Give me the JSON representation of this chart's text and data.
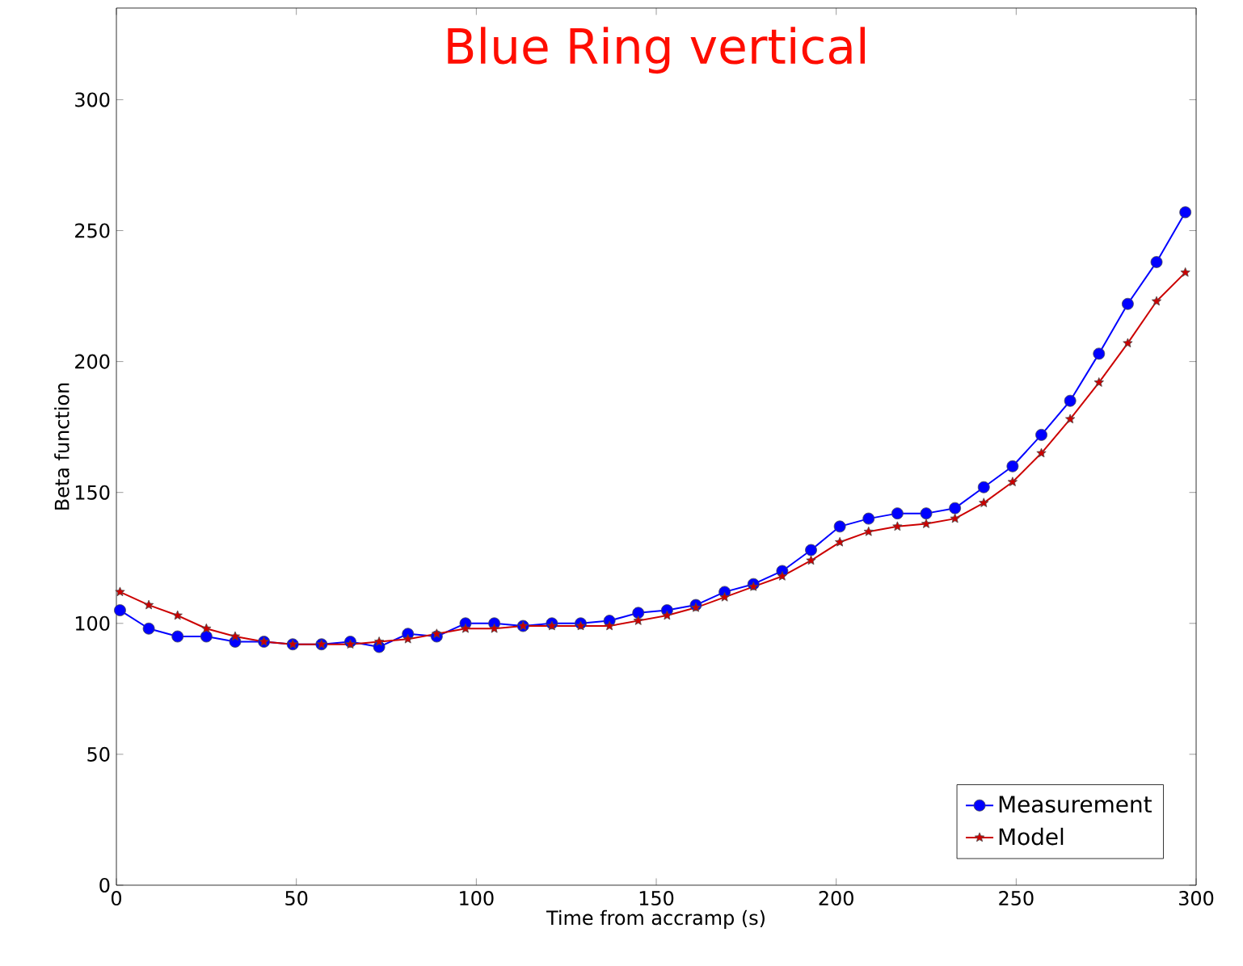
{
  "chart_data": {
    "type": "line",
    "title": "Blue Ring vertical",
    "xlabel": "Time from accramp (s)",
    "ylabel": "Beta function",
    "x": [
      1,
      9,
      17,
      25,
      33,
      41,
      49,
      57,
      65,
      73,
      81,
      89,
      97,
      105,
      113,
      121,
      129,
      137,
      145,
      153,
      161,
      169,
      177,
      185,
      193,
      201,
      209,
      217,
      225,
      233,
      241,
      249,
      257,
      265,
      273,
      281,
      289,
      297
    ],
    "series": [
      {
        "name": "Measurement",
        "color": "#0000ff",
        "marker": "circle",
        "values": [
          105,
          98,
          95,
          95,
          93,
          93,
          92,
          92,
          93,
          91,
          96,
          95,
          100,
          100,
          99,
          100,
          100,
          101,
          104,
          105,
          107,
          112,
          115,
          120,
          128,
          137,
          140,
          142,
          142,
          144,
          152,
          160,
          172,
          185,
          203,
          222,
          238,
          257
        ]
      },
      {
        "name": "Model",
        "color": "#cc0000",
        "marker": "star",
        "values": [
          112,
          107,
          103,
          98,
          95,
          93,
          92,
          92,
          92,
          93,
          94,
          96,
          98,
          98,
          99,
          99,
          99,
          99,
          101,
          103,
          106,
          110,
          114,
          118,
          124,
          131,
          135,
          137,
          138,
          140,
          146,
          154,
          165,
          178,
          192,
          207,
          223,
          234
        ]
      }
    ],
    "xlim": [
      0,
      300
    ],
    "ylim": [
      0,
      335
    ],
    "xticks": [
      0,
      50,
      100,
      150,
      200,
      250,
      300
    ],
    "yticks": [
      0,
      50,
      100,
      150,
      200,
      250,
      300
    ],
    "legend": "bottom right",
    "grid": false,
    "line_style": "solid"
  }
}
